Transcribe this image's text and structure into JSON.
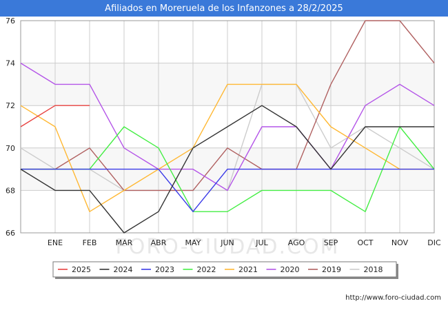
{
  "chart_data": {
    "type": "line",
    "title": "Afiliados en Moreruela de los Infanzones a 28/2/2025",
    "categories": [
      "",
      "ENE",
      "FEB",
      "MAR",
      "ABR",
      "MAY",
      "JUN",
      "JUL",
      "AGO",
      "SEP",
      "OCT",
      "NOV",
      "DIC"
    ],
    "ylim": [
      66,
      76
    ],
    "yticks": [
      66,
      68,
      70,
      72,
      74,
      76
    ],
    "xlabel": "",
    "ylabel": "",
    "grid": true,
    "legend_position": "bottom",
    "series": [
      {
        "name": "2025",
        "color": "#e8413f",
        "values": [
          71,
          72,
          72,
          null,
          null,
          null,
          null,
          null,
          null,
          null,
          null,
          null,
          null
        ]
      },
      {
        "name": "2024",
        "color": "#333333",
        "values": [
          69,
          68,
          68,
          66,
          67,
          70,
          71,
          72,
          71,
          69,
          71,
          71,
          71
        ]
      },
      {
        "name": "2023",
        "color": "#3a3ae8",
        "values": [
          69,
          69,
          69,
          69,
          69,
          67,
          69,
          69,
          69,
          69,
          69,
          69,
          69
        ]
      },
      {
        "name": "2022",
        "color": "#44ee44",
        "values": [
          69,
          69,
          69,
          71,
          70,
          67,
          67,
          68,
          68,
          68,
          67,
          71,
          69
        ]
      },
      {
        "name": "2021",
        "color": "#ffb833",
        "values": [
          72,
          71,
          67,
          68,
          69,
          70,
          73,
          73,
          73,
          71,
          70,
          69,
          69
        ]
      },
      {
        "name": "2020",
        "color": "#b455e8",
        "values": [
          74,
          73,
          73,
          70,
          69,
          69,
          68,
          71,
          71,
          69,
          72,
          73,
          72
        ]
      },
      {
        "name": "2019",
        "color": "#b06060",
        "values": [
          69,
          69,
          70,
          68,
          68,
          68,
          70,
          69,
          69,
          73,
          76,
          76,
          74
        ]
      },
      {
        "name": "2018",
        "color": "#cccccc",
        "values": [
          70,
          69,
          69,
          68,
          68,
          68,
          68,
          73,
          73,
          70,
          71,
          70,
          69
        ]
      }
    ]
  },
  "watermark": "FORO-CIUDAD.COM",
  "source_url": "http://www.foro-ciudad.com"
}
